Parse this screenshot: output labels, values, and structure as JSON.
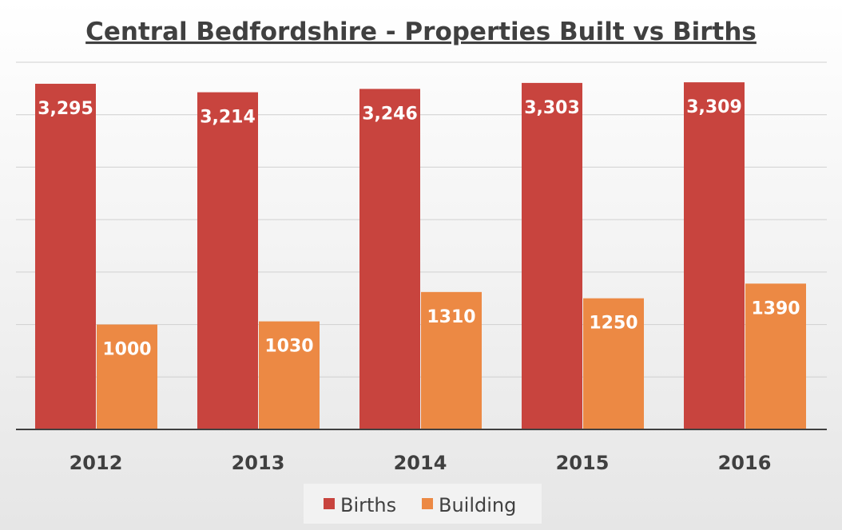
{
  "chart_data": {
    "type": "bar",
    "title": "Central Bedfordshire - Properties Built vs Births",
    "categories": [
      "2012",
      "2013",
      "2014",
      "2015",
      "2016"
    ],
    "series": [
      {
        "name": "Births",
        "values": [
          3295,
          3214,
          3246,
          3303,
          3309
        ],
        "labels": [
          "3,295",
          "3,214",
          "3,246",
          "3,303",
          "3,309"
        ],
        "color": "#c8443e"
      },
      {
        "name": "Building",
        "values": [
          1000,
          1030,
          1310,
          1250,
          1390
        ],
        "labels": [
          "1000",
          "1030",
          "1310",
          "1250",
          "1390"
        ],
        "color": "#ec8944"
      }
    ],
    "xlabel": "",
    "ylabel": "",
    "ylim": [
      0,
      3500
    ],
    "ytick_step": 500,
    "grid": true,
    "legend": "bottom"
  }
}
